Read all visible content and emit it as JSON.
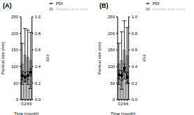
{
  "chart_data": [
    {
      "type": "bar",
      "title": "(A)",
      "x_label": "Time (month)",
      "y_label": "Partical size (nm)",
      "y2_label": "PDI",
      "categories": [
        "0",
        "2",
        "4",
        "6"
      ],
      "series": [
        {
          "name": "Particle size (nm)",
          "type": "bar",
          "color": "#bfbfbf",
          "values": [
            108,
            135,
            128,
            118
          ],
          "errors": [
            62,
            80,
            82,
            85
          ]
        },
        {
          "name": "PDI",
          "type": "line",
          "axis": "y2",
          "color": "#000000",
          "marker": "circle",
          "line_style": "solid",
          "values": [
            0.29,
            0.27,
            0.29,
            0.33
          ],
          "errors": [
            0.05,
            0.06,
            0.05,
            0.04
          ]
        }
      ],
      "ylim": [
        0,
        250
      ],
      "yticks": [
        0,
        50,
        100,
        150,
        200,
        250
      ],
      "y2lim": [
        0,
        1
      ],
      "y2ticks": [
        {
          "value": 0,
          "label": "0.0"
        },
        0.2,
        0.4,
        0.6,
        0.8,
        {
          "value": 1,
          "label": "1.0"
        }
      ],
      "legend": "upper right",
      "grid": false
    },
    {
      "type": "bar",
      "title": "(B)",
      "x_label": "Time (month)",
      "y_label": "Partical size (nm)",
      "y2_label": "PDI",
      "categories": [
        "0",
        "2",
        "4",
        "6"
      ],
      "series": [
        {
          "name": "Particle size (nm)",
          "type": "bar",
          "color": "#bfbfbf",
          "values": [
            108,
            118,
            150,
            133
          ],
          "errors": [
            62,
            87,
            88,
            85
          ]
        },
        {
          "name": "PDI",
          "type": "line",
          "axis": "y2",
          "color": "#000000",
          "marker": "circle",
          "line_style": "solid",
          "values": [
            0.3,
            0.29,
            0.38,
            0.27
          ],
          "errors": [
            0.05,
            0.06,
            0.05,
            0.06
          ]
        }
      ],
      "ylim": [
        0,
        250
      ],
      "yticks": [
        0,
        50,
        100,
        150,
        200,
        250
      ],
      "y2lim": [
        0,
        1
      ],
      "y2ticks": [
        {
          "value": 0,
          "label": "0.0"
        },
        0.2,
        0.4,
        0.6,
        0.8,
        {
          "value": 1,
          "label": "1.0"
        }
      ],
      "legend": "upper right",
      "grid": false
    }
  ]
}
